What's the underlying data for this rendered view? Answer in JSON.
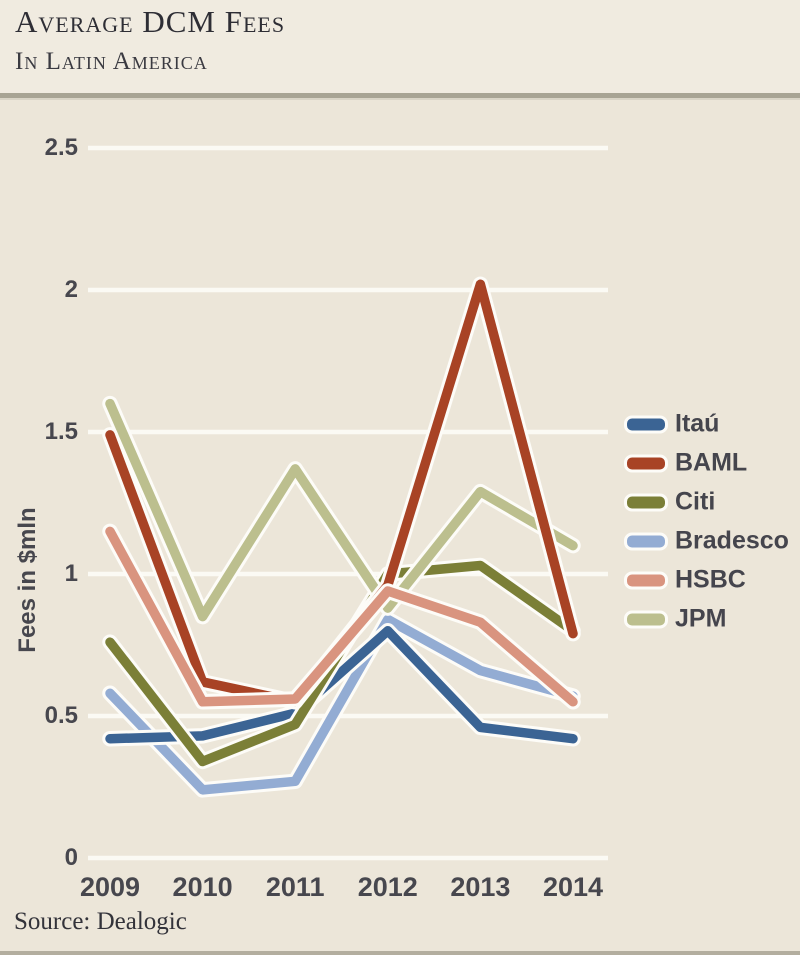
{
  "header": {
    "title": "Average DCM Fees",
    "subtitle": "In Latin America"
  },
  "source": {
    "label": "Source: Dealogic"
  },
  "colors": {
    "background": "#ece6d9",
    "header_background": "#f0ebe0",
    "gridline": "#fbfaf4",
    "line_halo": "#fdfcf8",
    "axis_text": "#47474e",
    "rule": "#a8a494"
  },
  "chart_data": {
    "type": "line",
    "title": "Average DCM Fees in Latin America",
    "categories": [
      "2009",
      "2010",
      "2011",
      "2012",
      "2013",
      "2014"
    ],
    "series": [
      {
        "name": "Itaú",
        "color": "#3b6494",
        "values": [
          0.42,
          0.43,
          0.51,
          0.8,
          0.46,
          0.42
        ]
      },
      {
        "name": "BAML",
        "color": "#a84325",
        "values": [
          1.49,
          0.62,
          0.55,
          0.96,
          2.02,
          0.79
        ]
      },
      {
        "name": "Citi",
        "color": "#7b7f37",
        "values": [
          0.76,
          0.34,
          0.47,
          1.0,
          1.03,
          0.8
        ]
      },
      {
        "name": "Bradesco",
        "color": "#93acd3",
        "values": [
          0.58,
          0.24,
          0.27,
          0.84,
          0.66,
          0.57
        ]
      },
      {
        "name": "HSBC",
        "color": "#d9947f",
        "values": [
          1.15,
          0.55,
          0.56,
          0.94,
          0.83,
          0.55
        ]
      },
      {
        "name": "JPM",
        "color": "#bcbf8e",
        "values": [
          1.6,
          0.85,
          1.37,
          0.88,
          1.29,
          1.1
        ]
      }
    ],
    "xlabel": "",
    "ylabel": "Fees in $mln",
    "ylim": [
      0,
      2.5
    ],
    "yticks": [
      {
        "value": 2.5,
        "label": "2.5"
      },
      {
        "value": 2.0,
        "label": "2"
      },
      {
        "value": 1.5,
        "label": "1.5"
      },
      {
        "value": 1.0,
        "label": "1"
      },
      {
        "value": 0.5,
        "label": "0.5"
      },
      {
        "value": 0.0,
        "label": "0"
      }
    ],
    "grid": true,
    "legend_position": "right"
  }
}
